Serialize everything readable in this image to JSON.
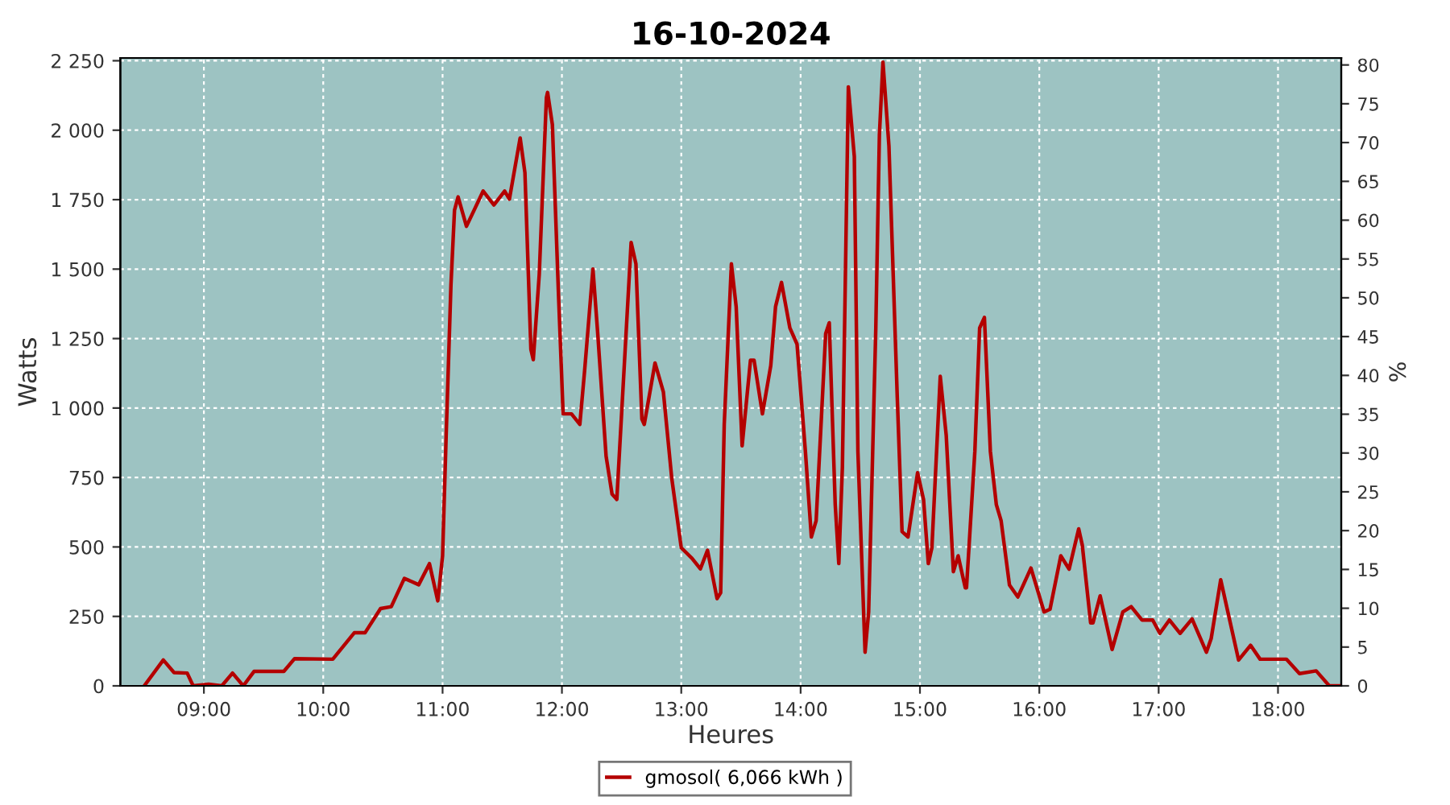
{
  "chart_data": {
    "type": "line",
    "title": "16-10-2024",
    "xlabel": "Heures",
    "ylabel": "Watts",
    "y2label": "%",
    "xlim": [
      8.3,
      18.53
    ],
    "xticks": [
      {
        "value": 9,
        "label": "09:00"
      },
      {
        "value": 10,
        "label": "10:00"
      },
      {
        "value": 11,
        "label": "11:00"
      },
      {
        "value": 12,
        "label": "12:00"
      },
      {
        "value": 13,
        "label": "13:00"
      },
      {
        "value": 14,
        "label": "14:00"
      },
      {
        "value": 15,
        "label": "15:00"
      },
      {
        "value": 16,
        "label": "16:00"
      },
      {
        "value": 17,
        "label": "17:00"
      },
      {
        "value": 18,
        "label": "18:00"
      }
    ],
    "ylim": [
      0,
      2260
    ],
    "yticks": [
      0,
      250,
      500,
      750,
      {
        "value": 1000,
        "label": "1 000"
      },
      {
        "value": 1250,
        "label": "1 250"
      },
      {
        "value": 1500,
        "label": "1 500"
      },
      {
        "value": 1750,
        "label": "1 750"
      },
      {
        "value": 2000,
        "label": "2 000"
      },
      {
        "value": 2250,
        "label": "2 250"
      }
    ],
    "y2lim": [
      0,
      80.9
    ],
    "y2ticks": [
      0,
      5,
      10,
      15,
      20,
      25,
      30,
      35,
      40,
      45,
      50,
      55,
      60,
      65,
      70,
      75,
      80
    ],
    "grid": true,
    "legend": "bottom",
    "marker": "none",
    "line_style": "solid",
    "series": [
      {
        "name": "gmosol( 6,066 kWh )",
        "color": "#b40000",
        "x": [
          8.5,
          8.66,
          8.75,
          8.86,
          8.91,
          9.04,
          9.15,
          9.24,
          9.33,
          9.42,
          9.67,
          9.76,
          10.08,
          10.26,
          10.35,
          10.48,
          10.57,
          10.68,
          10.8,
          10.89,
          10.96,
          11.0,
          11.03,
          11.07,
          11.1,
          11.13,
          11.2,
          11.34,
          11.43,
          11.52,
          11.56,
          11.65,
          11.69,
          11.74,
          11.76,
          11.81,
          11.87,
          11.88,
          11.92,
          11.97,
          12.01,
          12.08,
          12.15,
          12.19,
          12.26,
          12.3,
          12.37,
          12.42,
          12.46,
          12.53,
          12.58,
          12.62,
          12.67,
          12.69,
          12.78,
          12.85,
          12.92,
          13.0,
          13.09,
          13.16,
          13.22,
          13.3,
          13.33,
          13.36,
          13.42,
          13.46,
          13.51,
          13.58,
          13.61,
          13.68,
          13.75,
          13.79,
          13.84,
          13.91,
          13.97,
          14.04,
          14.09,
          14.13,
          14.21,
          14.24,
          14.29,
          14.32,
          14.35,
          14.4,
          14.45,
          14.48,
          14.54,
          14.57,
          14.63,
          14.66,
          14.69,
          14.74,
          14.81,
          14.85,
          14.9,
          14.98,
          15.03,
          15.07,
          15.1,
          15.17,
          15.22,
          15.28,
          15.32,
          15.38,
          15.39,
          15.46,
          15.5,
          15.54,
          15.59,
          15.64,
          15.68,
          15.75,
          15.82,
          15.93,
          16.04,
          16.09,
          16.18,
          16.25,
          16.33,
          16.36,
          16.43,
          16.45,
          16.51,
          16.61,
          16.7,
          16.77,
          16.86,
          16.95,
          17.01,
          17.09,
          17.18,
          17.28,
          17.4,
          17.44,
          17.52,
          17.58,
          17.67,
          17.77,
          17.85,
          18.07,
          18.18,
          18.32,
          18.43,
          18.52
        ],
        "values": [
          0,
          93,
          48,
          46,
          0,
          6,
          0,
          46,
          0,
          52,
          52,
          98,
          96,
          191,
          191,
          278,
          285,
          387,
          364,
          440,
          306,
          468,
          902,
          1442,
          1712,
          1760,
          1654,
          1781,
          1731,
          1781,
          1752,
          1972,
          1847,
          1211,
          1174,
          1481,
          2117,
          2136,
          2020,
          1423,
          979,
          979,
          941,
          1134,
          1500,
          1268,
          827,
          690,
          671,
          1211,
          1596,
          1519,
          960,
          941,
          1162,
          1058,
          748,
          497,
          459,
          421,
          488,
          314,
          335,
          941,
          1519,
          1365,
          864,
          1172,
          1172,
          979,
          1153,
          1365,
          1452,
          1288,
          1230,
          844,
          536,
          594,
          1268,
          1307,
          652,
          440,
          787,
          2156,
          1905,
          844,
          121,
          266,
          1288,
          1982,
          2245,
          1943,
          1037,
          555,
          536,
          767,
          671,
          440,
          497,
          1114,
          902,
          411,
          468,
          353,
          353,
          844,
          1288,
          1326,
          844,
          652,
          594,
          363,
          320,
          424,
          266,
          276,
          468,
          420,
          565,
          507,
          227,
          227,
          324,
          131,
          266,
          285,
          237,
          237,
          189,
          237,
          189,
          241,
          121,
          170,
          382,
          266,
          93,
          146,
          96,
          96,
          44,
          54,
          0,
          0
        ]
      }
    ]
  }
}
